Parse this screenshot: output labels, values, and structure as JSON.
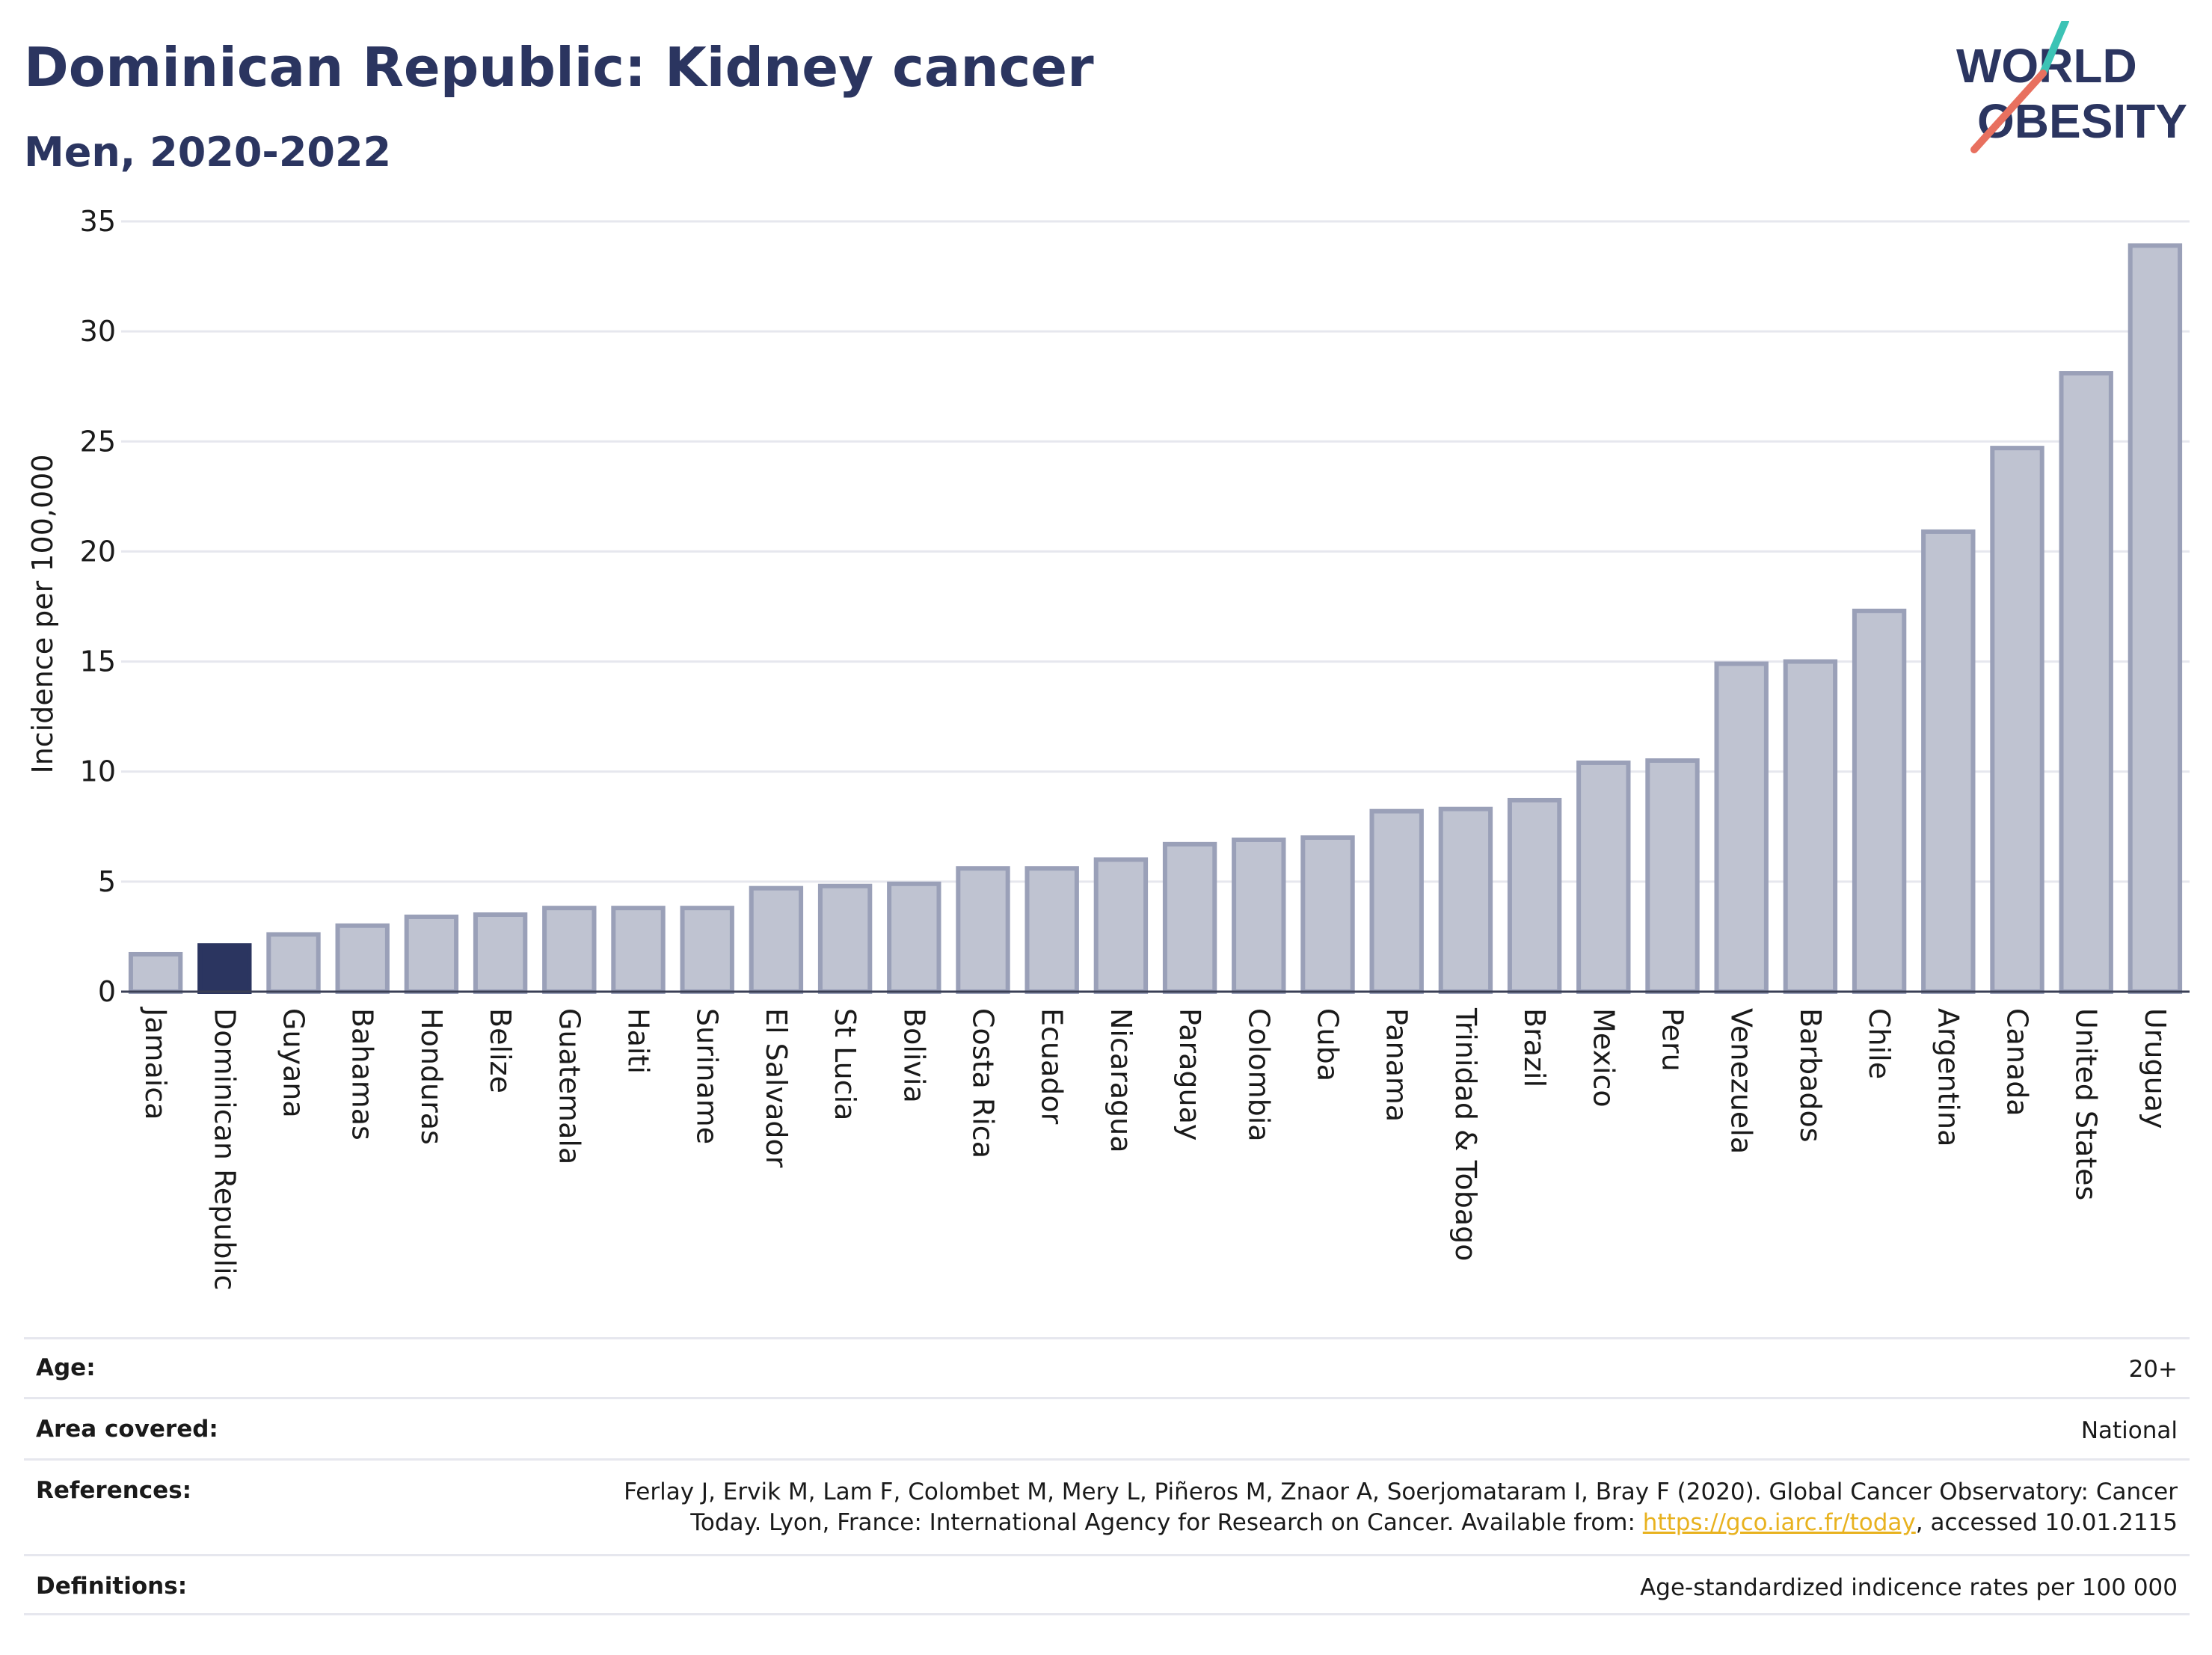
{
  "header": {
    "title": "Dominican Republic: Kidney cancer",
    "subtitle": "Men, 2020-2022",
    "logo_line1": "WORLD",
    "logo_line2": "OBESITY"
  },
  "colors": {
    "highlight": "#2b3560",
    "bar_fill": "#bfc3d1",
    "bar_stroke": "#9aa0b8",
    "logo_teal": "#3cc3b5",
    "logo_coral": "#e8705f",
    "link": "#e8b21f"
  },
  "chart_data": {
    "type": "bar",
    "title": "Dominican Republic: Kidney cancer",
    "subtitle": "Men, 2020-2022",
    "xlabel": "",
    "ylabel": "Incidence per 100,000",
    "ylim": [
      0,
      35
    ],
    "yticks": [
      0,
      5,
      10,
      15,
      20,
      25,
      30,
      35
    ],
    "grid": true,
    "highlight": "Dominican Republic",
    "categories": [
      "Jamaica",
      "Dominican Republic",
      "Guyana",
      "Bahamas",
      "Honduras",
      "Belize",
      "Guatemala",
      "Haiti",
      "Suriname",
      "El Salvador",
      "St Lucia",
      "Bolivia",
      "Costa Rica",
      "Ecuador",
      "Nicaragua",
      "Paraguay",
      "Colombia",
      "Cuba",
      "Panama",
      "Trinidad & Tobago",
      "Brazil",
      "Mexico",
      "Peru",
      "Venezuela",
      "Barbados",
      "Chile",
      "Argentina",
      "Canada",
      "United States",
      "Uruguay"
    ],
    "values": [
      1.7,
      2.1,
      2.6,
      3.0,
      3.4,
      3.5,
      3.8,
      3.8,
      3.8,
      4.7,
      4.8,
      4.9,
      5.6,
      5.6,
      6.0,
      6.7,
      6.9,
      7.0,
      8.2,
      8.3,
      8.7,
      10.4,
      10.5,
      14.9,
      15.0,
      17.3,
      20.9,
      24.7,
      28.1,
      33.9
    ]
  },
  "info": {
    "age_label": "Age:",
    "age_value": "20+",
    "area_label": "Area covered:",
    "area_value": "National",
    "references_label": "References:",
    "references_line1": "Ferlay J, Ervik M, Lam F, Colombet M, Mery L, Piñeros M, Znaor A, Soerjomataram I, Bray F (2020). Global Cancer Observatory: Cancer",
    "references_line2_pre": "Today. Lyon, France: International Agency for Research on Cancer. Available from: ",
    "references_link": "https://gco.iarc.fr/today",
    "references_line2_post": ", accessed 10.01.2115",
    "definitions_label": "Definitions:",
    "definitions_value": "Age-standardized indicence rates per 100 000"
  }
}
